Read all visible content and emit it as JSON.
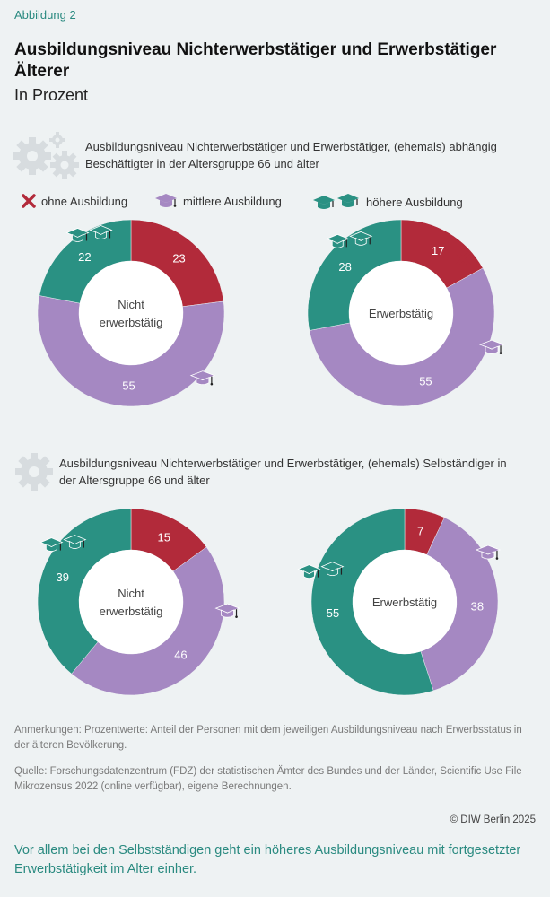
{
  "figure_label": "Abbildung 2",
  "title": "Ausbildungsniveau Nichterwerbstätiger und Erwerbstätiger Älterer",
  "subtitle": "In Prozent",
  "legend": {
    "none": "ohne Ausbildung",
    "mid": "mittlere Ausbildung",
    "high": "höhere Ausbildung"
  },
  "colors": {
    "none": "#b22a3a",
    "mid": "#a588c2",
    "high": "#2a9183",
    "accent": "#2a8a80"
  },
  "chart_data": [
    {
      "type": "pie",
      "section": "Ausbildungsniveau Nichterwerbstätiger und Erwerbstätiger, (ehemals) abhängig Beschäftigter in der Altersgruppe 66 und älter",
      "center_label": [
        "Nicht",
        "erwerbstätig"
      ],
      "slices": [
        {
          "key": "none",
          "label": "ohne Ausbildung",
          "value": 23
        },
        {
          "key": "mid",
          "label": "mittlere Ausbildung",
          "value": 55
        },
        {
          "key": "high",
          "label": "höhere Ausbildung",
          "value": 22
        }
      ]
    },
    {
      "type": "pie",
      "section": "Ausbildungsniveau Nichterwerbstätiger und Erwerbstätiger, (ehemals) abhängig Beschäftigter in der Altersgruppe 66 und älter",
      "center_label": [
        "Erwerbstätig"
      ],
      "slices": [
        {
          "key": "none",
          "label": "ohne Ausbildung",
          "value": 17
        },
        {
          "key": "mid",
          "label": "mittlere Ausbildung",
          "value": 55
        },
        {
          "key": "high",
          "label": "höhere Ausbildung",
          "value": 28
        }
      ]
    },
    {
      "type": "pie",
      "section": "Ausbildungsniveau Nichterwerbstätiger und Erwerbstätiger, (ehemals) Selbständiger in der Altersgruppe 66 und älter",
      "center_label": [
        "Nicht",
        "erwerbstätig"
      ],
      "slices": [
        {
          "key": "none",
          "label": "ohne Ausbildung",
          "value": 15
        },
        {
          "key": "mid",
          "label": "mittlere Ausbildung",
          "value": 46
        },
        {
          "key": "high",
          "label": "höhere Ausbildung",
          "value": 39
        }
      ]
    },
    {
      "type": "pie",
      "section": "Ausbildungsniveau Nichterwerbstätiger und Erwerbstätiger, (ehemals) Selbständiger in der Altersgruppe 66 und älter",
      "center_label": [
        "Erwerbstätig"
      ],
      "slices": [
        {
          "key": "none",
          "label": "ohne Ausbildung",
          "value": 7
        },
        {
          "key": "mid",
          "label": "mittlere Ausbildung",
          "value": 38
        },
        {
          "key": "high",
          "label": "höhere Ausbildung",
          "value": 55
        }
      ]
    }
  ],
  "sections": {
    "top": "Ausbildungsniveau Nichterwerbstätiger und Erwerbstätiger, (ehemals) abhängig Beschäftigter in der Altersgruppe 66 und älter",
    "bottom": "Ausbildungsniveau Nichterwerbstätiger und Erwerbstätiger, (ehemals) Selbständiger in der Altersgruppe 66 und älter"
  },
  "notes": {
    "remarks": "Anmerkungen: Prozentwerte: Anteil der Personen mit dem jeweiligen Ausbildungsniveau nach Erwerbsstatus in der älteren Bevölkerung.",
    "source": "Quelle: Forschungsdatenzentrum (FDZ) der statistischen Ämter des Bundes und der Länder, Scientific Use File Mikrozensus 2022 (online verfügbar), eigene Berechnungen."
  },
  "copyright": "© DIW Berlin 2025",
  "summary": "Vor allem bei den Selbstständigen geht ein höheres Ausbildungsniveau mit fortge­setzter Erwerbstätigkeit im Alter einher."
}
